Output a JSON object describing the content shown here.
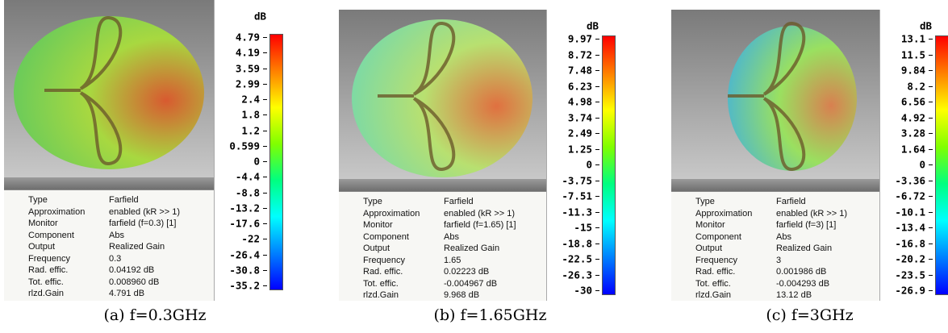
{
  "panels": [
    {
      "unit": "dB",
      "scale": [
        "4.79",
        "4.19",
        "3.59",
        "2.99",
        "2.4",
        "1.8",
        "1.2",
        "0.599",
        "0",
        "-4.4",
        "-8.8",
        "-13.2",
        "-17.6",
        "-22",
        "-26.4",
        "-30.8",
        "-35.2"
      ],
      "info": [
        [
          "Type",
          "Farfield"
        ],
        [
          "Approximation",
          "enabled (kR >> 1)"
        ],
        [
          "Monitor",
          "farfield (f=0.3) [1]"
        ],
        [
          "Component",
          "Abs"
        ],
        [
          "Output",
          "Realized Gain"
        ],
        [
          "Frequency",
          "0.3"
        ],
        [
          "Rad. effic.",
          "0.04192 dB"
        ],
        [
          "Tot. effic.",
          "0.008960 dB"
        ],
        [
          "rlzd.Gain",
          "4.791 dB"
        ]
      ],
      "caption": "(a) f=0.3GHz"
    },
    {
      "unit": "dB",
      "scale": [
        "9.97",
        "8.72",
        "7.48",
        "6.23",
        "4.98",
        "3.74",
        "2.49",
        "1.25",
        "0",
        "-3.75",
        "-7.51",
        "-11.3",
        "-15",
        "-18.8",
        "-22.5",
        "-26.3",
        "-30"
      ],
      "info": [
        [
          "Type",
          "Farfield"
        ],
        [
          "Approximation",
          "enabled (kR >> 1)"
        ],
        [
          "Monitor",
          "farfield (f=1.65) [1]"
        ],
        [
          "Component",
          "Abs"
        ],
        [
          "Output",
          "Realized Gain"
        ],
        [
          "Frequency",
          "1.65"
        ],
        [
          "Rad. effic.",
          "0.02223 dB"
        ],
        [
          "Tot. effic.",
          "-0.004967 dB"
        ],
        [
          "rlzd.Gain",
          "9.968 dB"
        ]
      ],
      "caption": "(b) f=1.65GHz"
    },
    {
      "unit": "dB",
      "scale": [
        "13.1",
        "11.5",
        "9.84",
        "8.2",
        "6.56",
        "4.92",
        "3.28",
        "1.64",
        "0",
        "-3.36",
        "-6.72",
        "-10.1",
        "-13.4",
        "-16.8",
        "-20.2",
        "-23.5",
        "-26.9"
      ],
      "info": [
        [
          "Type",
          "Farfield"
        ],
        [
          "Approximation",
          "enabled (kR >> 1)"
        ],
        [
          "Monitor",
          "farfield (f=3) [1]"
        ],
        [
          "Component",
          "Abs"
        ],
        [
          "Output",
          "Realized Gain"
        ],
        [
          "Frequency",
          "3"
        ],
        [
          "Rad. effic.",
          "0.001986 dB"
        ],
        [
          "Tot. effic.",
          "-0.004293 dB"
        ],
        [
          "rlzd.Gain",
          "13.12 dB"
        ]
      ],
      "caption": "(c) f=3GHz"
    }
  ]
}
